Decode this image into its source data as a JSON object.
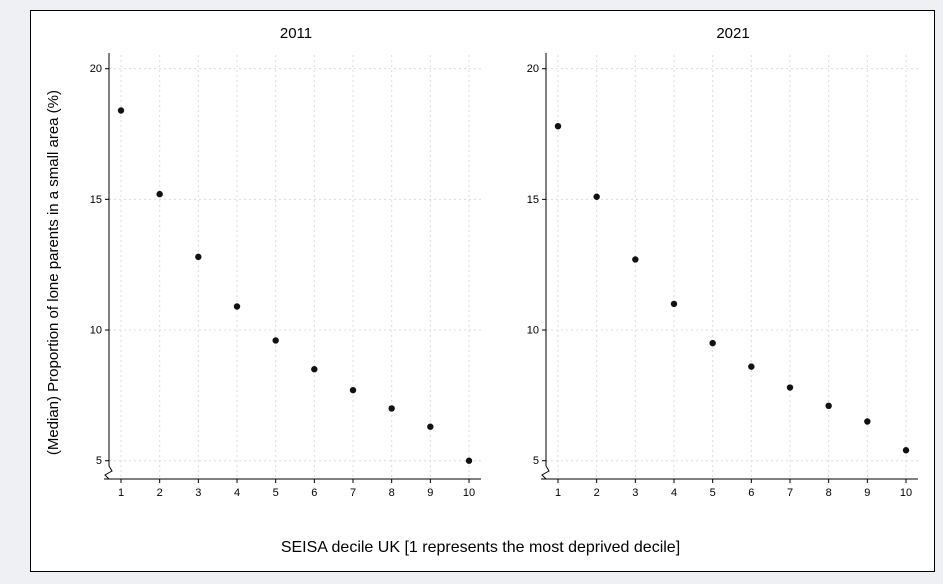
{
  "chart_data": {
    "type": "scatter",
    "title": "",
    "xlabel": "SEISA decile UK [1 represents the most deprived decile]",
    "ylabel": "(Median) Proportion of lone parents in a small area (%)",
    "categories": [
      1,
      2,
      3,
      4,
      5,
      6,
      7,
      8,
      9,
      10
    ],
    "yticks": [
      5,
      10,
      15,
      20
    ],
    "ylim": [
      4.3,
      20.6
    ],
    "grid": true,
    "axis_break": true,
    "legend": "none",
    "marker": "filled-circle",
    "marker_color": "#111111",
    "grid_color": "#dcdcdc",
    "axis_color": "#000000",
    "panels": [
      {
        "title": "2011",
        "values": [
          18.4,
          15.2,
          12.8,
          10.9,
          9.6,
          8.5,
          7.7,
          7.0,
          6.3,
          5.0
        ]
      },
      {
        "title": "2021",
        "values": [
          17.8,
          15.1,
          12.7,
          11.0,
          9.5,
          8.6,
          7.8,
          7.1,
          6.5,
          5.4
        ]
      }
    ]
  }
}
